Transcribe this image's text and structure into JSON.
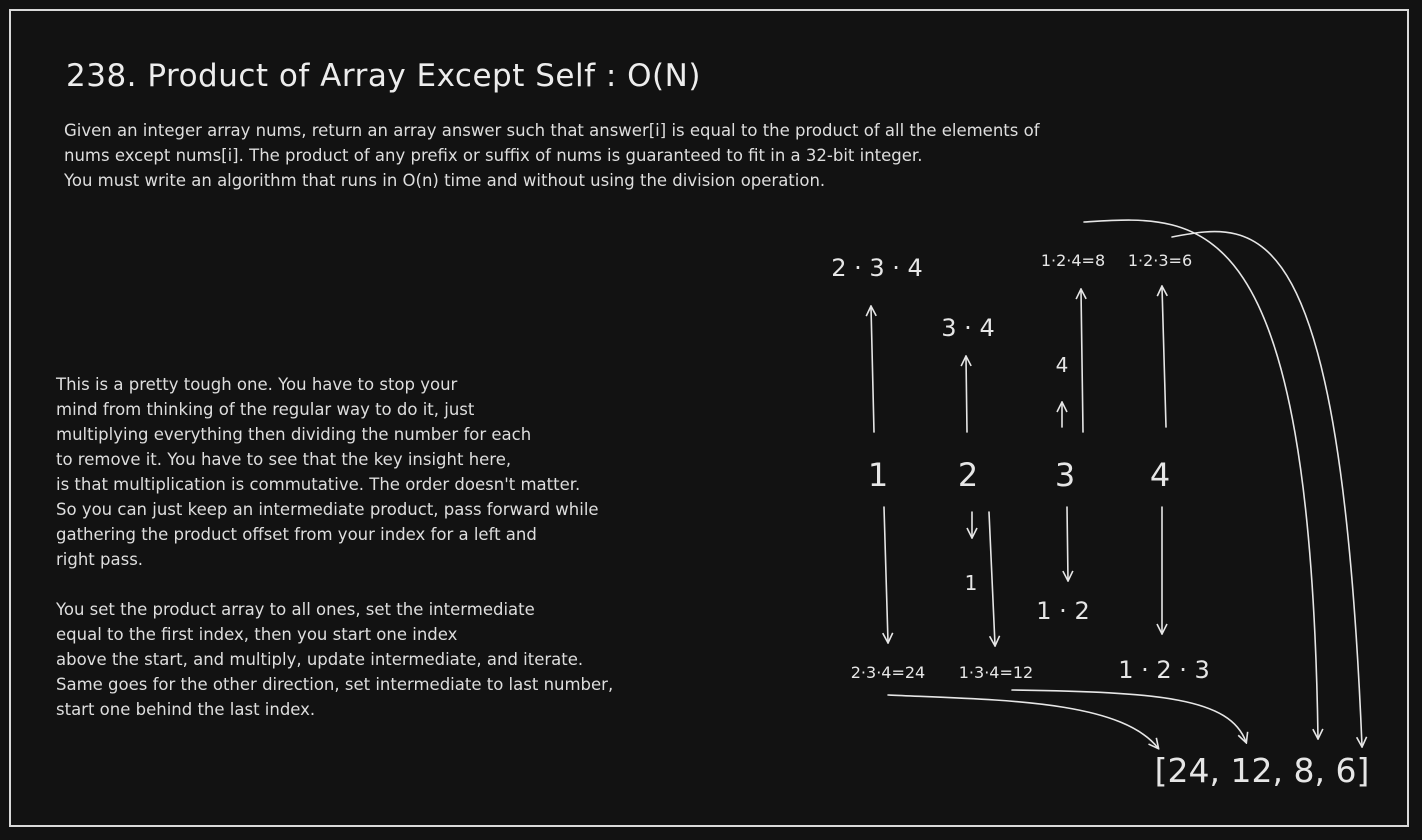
{
  "title": "238. Product of Array Except Self : O(N)",
  "problem_lines": [
    "Given an integer array nums, return an array answer such that answer[i] is equal to the product of all the elements of",
    "nums except nums[i]. The product of any prefix or suffix of nums is guaranteed to fit in a 32-bit integer.",
    "You must write an algorithm that runs in O(n) time and without using the division operation."
  ],
  "notes_lines": [
    "This is a pretty tough one. You have to stop your",
    "mind from thinking  of the regular way to do it, just",
    "multiplying everything then dividing the number for each",
    "to remove it. You have to see that the key insight here,",
    "is that multiplication is commutative. The order doesn't matter.",
    "So you can just keep an intermediate product, pass forward while",
    "gathering the product offset from your index for a left and",
    "right pass.",
    "",
    "You set the product array to all ones, set the intermediate",
    "equal to the first index, then you start one index",
    "above the start, and multiply, update intermediate, and iterate.",
    "Same goes for the other direction, set intermediate to last number,",
    "start one behind the last index."
  ],
  "diagram": {
    "nums": [
      "1",
      "2",
      "3",
      "4"
    ],
    "suffix_labels": [
      "2 · 3 · 4",
      "3 · 4",
      "4"
    ],
    "prefix_labels": [
      "1",
      "1 · 2",
      "1 · 2 · 3"
    ],
    "upper_results": [
      "1·2·4=8",
      "1·2·3=6"
    ],
    "lower_results": [
      "2·3·4=24",
      "1·3·4=12"
    ],
    "answer": "[24, 12, 8, 6]"
  },
  "colors": {
    "background": "#121212",
    "ink": "#e6e6e6",
    "frame": "#d9d9d9"
  }
}
